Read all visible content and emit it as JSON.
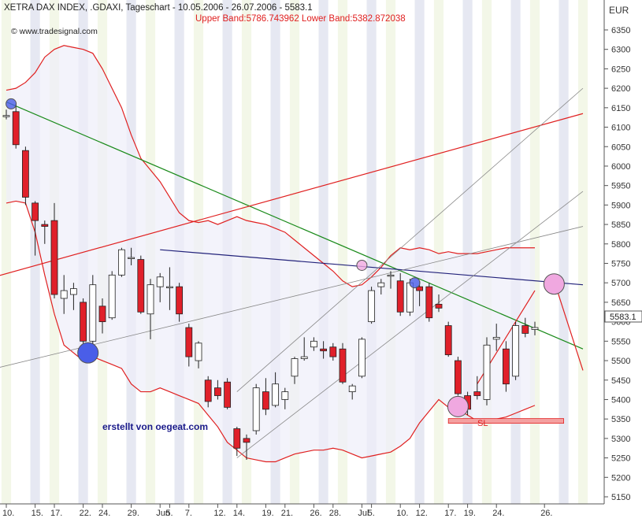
{
  "header": {
    "title": "XETRA DAX INDEX, .GDAXI, Tageschart - 10.05.2006 - 26.07.2006 - 5583.1",
    "bands": "Upper Band:5786.743962 Lower Band:5382.872038",
    "source": "© www.tradesignal.com",
    "credit": "erstellt von oegeat.com",
    "currency": "EUR",
    "last_price": "5583.1",
    "sl_label": "SL"
  },
  "colors": {
    "background": "#ffffff",
    "stripe_light": "#f3f7e8",
    "stripe_dark": "#e6e8f2",
    "candle_up": "#ffffff",
    "candle_down": "#e0202a",
    "bollinger": "#e02020",
    "trend_green": "#1a8a1a",
    "trend_navy": "#22227a",
    "trend_red": "#e02020",
    "channel_gray": "#888888",
    "marker_blue": "#4a5ee8",
    "marker_pink": "#f0a8e0",
    "sl_bar": "#f4a0a0",
    "credit_text": "#1a1a8a",
    "axis_text": "#333333"
  },
  "chart_data": {
    "type": "candlestick",
    "title": "XETRA DAX INDEX, .GDAXI, Tageschart - 10.05.2006 - 26.07.2006 - 5583.1",
    "ylabel": "EUR",
    "ylim": [
      5150,
      6350
    ],
    "y_ticks": [
      6350,
      6300,
      6250,
      6200,
      6150,
      6100,
      6050,
      6000,
      5950,
      5900,
      5850,
      5800,
      5750,
      5700,
      5650,
      5600,
      5550,
      5500,
      5450,
      5400,
      5350,
      5300,
      5250,
      5200,
      5150
    ],
    "x_ticks": [
      {
        "label": "10.",
        "i": 0
      },
      {
        "label": "15.",
        "i": 3
      },
      {
        "label": "17.",
        "i": 5
      },
      {
        "label": "22.",
        "i": 8
      },
      {
        "label": "24.",
        "i": 10
      },
      {
        "label": "29.",
        "i": 13
      },
      {
        "label": "Jun",
        "i": 16
      },
      {
        "label": "5.",
        "i": 17
      },
      {
        "label": "7.",
        "i": 19
      },
      {
        "label": "12.",
        "i": 22
      },
      {
        "label": "14.",
        "i": 24
      },
      {
        "label": "19.",
        "i": 27
      },
      {
        "label": "21.",
        "i": 29
      },
      {
        "label": "26.",
        "i": 32
      },
      {
        "label": "28.",
        "i": 34
      },
      {
        "label": "Jul",
        "i": 37
      },
      {
        "label": "5.",
        "i": 38
      },
      {
        "label": "10.",
        "i": 41
      },
      {
        "label": "12.",
        "i": 43
      },
      {
        "label": "17.",
        "i": 46
      },
      {
        "label": "19.",
        "i": 48
      },
      {
        "label": "24.",
        "i": 51
      },
      {
        "label": "26.",
        "i": 56
      }
    ],
    "candles": [
      {
        "o": 6130,
        "h": 6145,
        "l": 6120,
        "c": 6130
      },
      {
        "o": 6140,
        "h": 6160,
        "l": 6045,
        "c": 6055
      },
      {
        "o": 6040,
        "h": 6050,
        "l": 5900,
        "c": 5920
      },
      {
        "o": 5905,
        "h": 5910,
        "l": 5770,
        "c": 5860
      },
      {
        "o": 5850,
        "h": 5860,
        "l": 5800,
        "c": 5845
      },
      {
        "o": 5860,
        "h": 5905,
        "l": 5660,
        "c": 5670
      },
      {
        "o": 5660,
        "h": 5720,
        "l": 5620,
        "c": 5680
      },
      {
        "o": 5670,
        "h": 5700,
        "l": 5630,
        "c": 5685
      },
      {
        "o": 5650,
        "h": 5660,
        "l": 5540,
        "c": 5550
      },
      {
        "o": 5550,
        "h": 5720,
        "l": 5525,
        "c": 5695
      },
      {
        "o": 5640,
        "h": 5660,
        "l": 5570,
        "c": 5600
      },
      {
        "o": 5610,
        "h": 5730,
        "l": 5605,
        "c": 5720
      },
      {
        "o": 5720,
        "h": 5790,
        "l": 5715,
        "c": 5785
      },
      {
        "o": 5765,
        "h": 5790,
        "l": 5745,
        "c": 5765
      },
      {
        "o": 5760,
        "h": 5770,
        "l": 5620,
        "c": 5625
      },
      {
        "o": 5620,
        "h": 5710,
        "l": 5555,
        "c": 5695
      },
      {
        "o": 5690,
        "h": 5725,
        "l": 5650,
        "c": 5715
      },
      {
        "o": 5690,
        "h": 5740,
        "l": 5630,
        "c": 5690
      },
      {
        "o": 5690,
        "h": 5700,
        "l": 5600,
        "c": 5620
      },
      {
        "o": 5585,
        "h": 5595,
        "l": 5485,
        "c": 5510
      },
      {
        "o": 5500,
        "h": 5550,
        "l": 5480,
        "c": 5545
      },
      {
        "o": 5450,
        "h": 5460,
        "l": 5380,
        "c": 5395
      },
      {
        "o": 5430,
        "h": 5450,
        "l": 5400,
        "c": 5410
      },
      {
        "o": 5445,
        "h": 5455,
        "l": 5375,
        "c": 5380
      },
      {
        "o": 5325,
        "h": 5330,
        "l": 5255,
        "c": 5275
      },
      {
        "o": 5300,
        "h": 5310,
        "l": 5245,
        "c": 5290
      },
      {
        "o": 5320,
        "h": 5440,
        "l": 5310,
        "c": 5430
      },
      {
        "o": 5420,
        "h": 5455,
        "l": 5360,
        "c": 5375
      },
      {
        "o": 5385,
        "h": 5470,
        "l": 5380,
        "c": 5440
      },
      {
        "o": 5400,
        "h": 5430,
        "l": 5375,
        "c": 5420
      },
      {
        "o": 5460,
        "h": 5510,
        "l": 5440,
        "c": 5505
      },
      {
        "o": 5505,
        "h": 5560,
        "l": 5500,
        "c": 5510
      },
      {
        "o": 5535,
        "h": 5560,
        "l": 5525,
        "c": 5550
      },
      {
        "o": 5530,
        "h": 5550,
        "l": 5505,
        "c": 5525
      },
      {
        "o": 5535,
        "h": 5545,
        "l": 5500,
        "c": 5510
      },
      {
        "o": 5530,
        "h": 5545,
        "l": 5440,
        "c": 5445
      },
      {
        "o": 5420,
        "h": 5440,
        "l": 5400,
        "c": 5435
      },
      {
        "o": 5460,
        "h": 5560,
        "l": 5455,
        "c": 5555
      },
      {
        "o": 5600,
        "h": 5690,
        "l": 5595,
        "c": 5680
      },
      {
        "o": 5690,
        "h": 5710,
        "l": 5670,
        "c": 5700
      },
      {
        "o": 5720,
        "h": 5730,
        "l": 5685,
        "c": 5720
      },
      {
        "o": 5705,
        "h": 5725,
        "l": 5615,
        "c": 5625
      },
      {
        "o": 5625,
        "h": 5710,
        "l": 5615,
        "c": 5700
      },
      {
        "o": 5690,
        "h": 5705,
        "l": 5640,
        "c": 5680
      },
      {
        "o": 5690,
        "h": 5700,
        "l": 5600,
        "c": 5610
      },
      {
        "o": 5645,
        "h": 5670,
        "l": 5625,
        "c": 5635
      },
      {
        "o": 5590,
        "h": 5600,
        "l": 5510,
        "c": 5515
      },
      {
        "o": 5500,
        "h": 5510,
        "l": 5410,
        "c": 5415
      },
      {
        "o": 5410,
        "h": 5420,
        "l": 5360,
        "c": 5375
      },
      {
        "o": 5420,
        "h": 5460,
        "l": 5400,
        "c": 5410
      },
      {
        "o": 5400,
        "h": 5560,
        "l": 5385,
        "c": 5540
      },
      {
        "o": 5555,
        "h": 5595,
        "l": 5525,
        "c": 5560
      },
      {
        "o": 5530,
        "h": 5550,
        "l": 5420,
        "c": 5440
      },
      {
        "o": 5460,
        "h": 5600,
        "l": 5450,
        "c": 5590
      },
      {
        "o": 5590,
        "h": 5610,
        "l": 5560,
        "c": 5570
      },
      {
        "o": 5580,
        "h": 5600,
        "l": 5565,
        "c": 5585
      }
    ],
    "bollinger_upper": [
      6195,
      6200,
      6215,
      6240,
      6280,
      6300,
      6310,
      6305,
      6300,
      6290,
      6250,
      6200,
      6150,
      6080,
      6020,
      5990,
      5960,
      5920,
      5880,
      5860,
      5855,
      5860,
      5850,
      5860,
      5870,
      5860,
      5855,
      5850,
      5840,
      5830,
      5810,
      5790,
      5770,
      5750,
      5730,
      5705,
      5690,
      5695,
      5715,
      5740,
      5770,
      5790,
      5785,
      5790,
      5785,
      5775,
      5780,
      5775,
      5775,
      5775,
      5780,
      5785,
      5790,
      5790,
      5790,
      5790
    ],
    "bollinger_lower": [
      5905,
      5910,
      5905,
      5830,
      5720,
      5620,
      5540,
      5520,
      5500,
      5510,
      5500,
      5490,
      5480,
      5440,
      5420,
      5420,
      5430,
      5420,
      5410,
      5400,
      5390,
      5360,
      5330,
      5290,
      5270,
      5250,
      5245,
      5240,
      5240,
      5250,
      5260,
      5265,
      5270,
      5270,
      5275,
      5270,
      5260,
      5250,
      5255,
      5260,
      5265,
      5280,
      5300,
      5340,
      5370,
      5400,
      5380,
      5375,
      5360,
      5345,
      5345,
      5350,
      5355,
      5365,
      5375,
      5385
    ],
    "trendlines": [
      {
        "color": "green",
        "from": [
          0,
          6165
        ],
        "to": [
          60,
          5530
        ]
      },
      {
        "color": "navy",
        "from": [
          16,
          5785
        ],
        "to": [
          60,
          5695
        ]
      },
      {
        "color": "red",
        "from": [
          -2,
          5710
        ],
        "to": [
          60,
          6135
        ]
      },
      {
        "color": "gray",
        "from": [
          -2,
          5475
        ],
        "to": [
          60,
          5845
        ]
      },
      {
        "color": "gray",
        "from": [
          24,
          5250
        ],
        "to": [
          60,
          5935
        ]
      },
      {
        "color": "gray",
        "from": [
          24,
          5420
        ],
        "to": [
          60,
          6200
        ]
      }
    ],
    "projection": {
      "points": [
        [
          49,
          5440
        ],
        [
          55,
          5680
        ]
      ]
    },
    "projection_down": {
      "points": [
        [
          57,
          5705
        ],
        [
          60,
          5475
        ]
      ]
    },
    "markers": [
      {
        "i": 0.5,
        "price": 6160,
        "size": "small",
        "color": "blue"
      },
      {
        "i": 8.5,
        "price": 5520,
        "size": "large",
        "color": "blue"
      },
      {
        "i": 37,
        "price": 5745,
        "size": "small",
        "color": "pink"
      },
      {
        "i": 42.5,
        "price": 5700,
        "size": "small",
        "color": "blue"
      },
      {
        "i": 47,
        "price": 5382,
        "size": "large",
        "color": "pink"
      },
      {
        "i": 57,
        "price": 5697,
        "size": "large",
        "color": "pink"
      }
    ],
    "sl": {
      "from": 46,
      "to": 58,
      "price": 5345
    }
  }
}
